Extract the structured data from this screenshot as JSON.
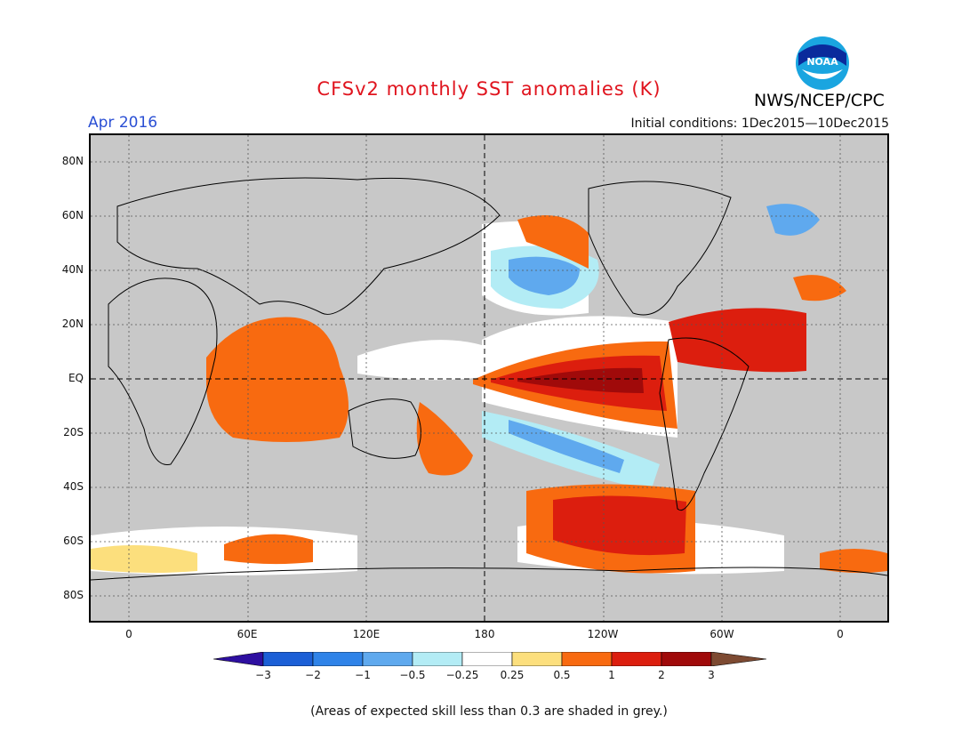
{
  "header": {
    "title": "CFSv2 monthly SST anomalies (K)",
    "target_month": "Apr 2016",
    "initial_conditions": "Initial conditions: 1Dec2015—10Dec2015",
    "agency": "NWS/NCEP/CPC",
    "logo_text": "NOAA"
  },
  "map": {
    "lat_labels": [
      "80N",
      "60N",
      "40N",
      "20N",
      "EQ",
      "20S",
      "40S",
      "60S",
      "80S"
    ],
    "lon_labels": [
      "0",
      "60E",
      "120E",
      "180",
      "120W",
      "60W",
      "0"
    ],
    "land_color": "#c8c8c8",
    "ocean_color": "#ffffff",
    "grid": "dotted",
    "reference_lines": [
      "equator",
      "dateline"
    ]
  },
  "colorbar": {
    "ticks": [
      "−3",
      "−2",
      "−1",
      "−0.5",
      "−0.25",
      "0.25",
      "0.5",
      "1",
      "2",
      "3"
    ],
    "colors": [
      "#2e0fa0",
      "#1b5fd6",
      "#2f83e8",
      "#5fa9ee",
      "#b3ecf5",
      "#ffffff",
      "#fcdf7d",
      "#f86a10",
      "#dc1e0e",
      "#a00a0a",
      "#7d4a32"
    ]
  },
  "footnote": "(Areas of expected skill less than 0.3 are shaded in grey.)"
}
